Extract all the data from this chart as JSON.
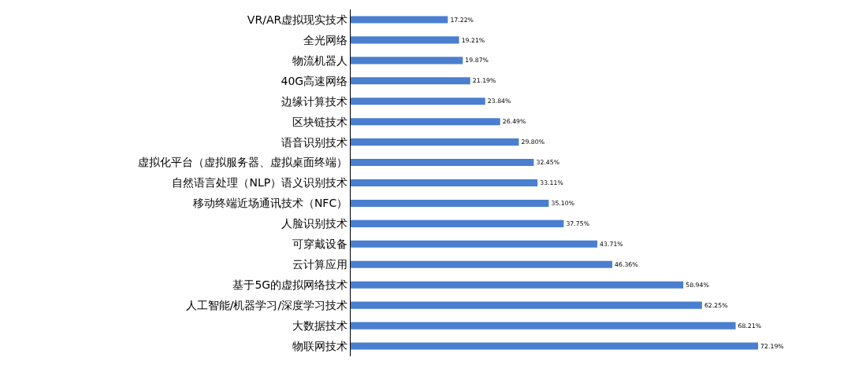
{
  "chart_data": {
    "type": "bar",
    "orientation": "horizontal",
    "categories": [
      "VR/AR虚拟现实技术",
      "全光网络",
      "物流机器人",
      "40G高速网络",
      "边缘计算技术",
      "区块链技术",
      "语音识别技术",
      "虚拟化平台（虚拟服务器、虚拟桌面终端）",
      "自然语言处理（NLP）语义识别技术",
      "移动终端近场通讯技术（NFC）",
      "人脸识别技术",
      "可穿戴设备",
      "云计算应用",
      "基于5G的虚拟网络技术",
      "人工智能/机器学习/深度学习技术",
      "大数据技术",
      "物联网技术"
    ],
    "values": [
      17.22,
      19.21,
      19.87,
      21.19,
      23.84,
      26.49,
      29.8,
      32.45,
      33.11,
      35.1,
      37.75,
      43.71,
      46.36,
      58.94,
      62.25,
      68.21,
      72.19
    ],
    "value_labels": [
      "17.22%",
      "19.21%",
      "19.87%",
      "21.19%",
      "23.84%",
      "26.49%",
      "29.80%",
      "32.45%",
      "33.11%",
      "35.10%",
      "37.75%",
      "43.71%",
      "46.36%",
      "58.94%",
      "62.25%",
      "68.21%",
      "72.19%"
    ],
    "color": "#4a7fd0",
    "legend": false,
    "tick_labels": "y"
  }
}
